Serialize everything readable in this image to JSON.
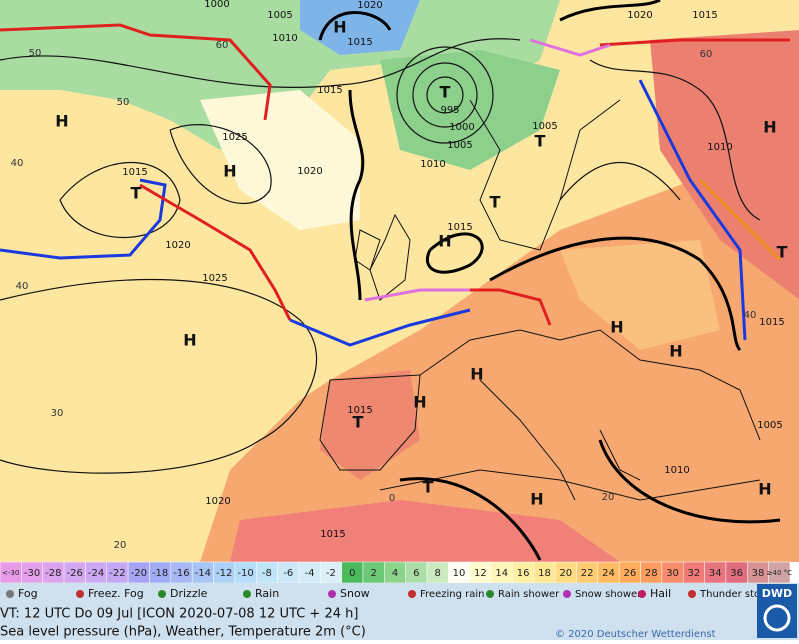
{
  "map": {
    "pressure_labels": [
      "1000",
      "1005",
      "1010",
      "1015",
      "1020",
      "1015",
      "1025",
      "1020",
      "1015",
      "1020",
      "1025",
      "995",
      "1000",
      "1005",
      "1010",
      "1015",
      "1020",
      "1015",
      "1005",
      "1010",
      "1015",
      "1015",
      "1020",
      "1015",
      "1010",
      "1005"
    ],
    "centers": [
      "H",
      "H",
      "T",
      "T",
      "T",
      "T",
      "H",
      "H",
      "H",
      "H",
      "T",
      "T",
      "H",
      "H",
      "H",
      "H",
      "H",
      "T",
      "H"
    ],
    "temperature_labels": [
      "50",
      "60",
      "50",
      "40",
      "40",
      "30",
      "20",
      "0",
      "40",
      "60",
      "20"
    ]
  },
  "scale": {
    "labels": [
      "<-30",
      -30,
      -28,
      -26,
      -24,
      -22,
      -20,
      -18,
      -16,
      -14,
      -12,
      -10,
      -8,
      -6,
      -4,
      -2,
      0,
      2,
      4,
      6,
      8,
      10,
      12,
      14,
      16,
      18,
      20,
      22,
      24,
      26,
      28,
      30,
      32,
      34,
      36,
      38,
      "≥40 °C"
    ],
    "colors": [
      "#e89ce8",
      "#e4a0ec",
      "#dca4ee",
      "#d4a8f0",
      "#cca8f2",
      "#c4a8f4",
      "#a8a4f4",
      "#a0acf4",
      "#a8b8f4",
      "#a8c4f4",
      "#acd0f6",
      "#b4dcf8",
      "#c0e4f8",
      "#cce8f8",
      "#d4ecf8",
      "#dcf0f8",
      "#4cba5c",
      "#6cc874",
      "#8cd48c",
      "#acdea8",
      "#cceac0",
      "#fffff4",
      "#fffcd0",
      "#fff6b8",
      "#fff0a4",
      "#ffe894",
      "#ffdc84",
      "#ffcc74",
      "#ffbc64",
      "#ffac5c",
      "#ff9c60",
      "#f88c6c",
      "#f07c78",
      "#e87480",
      "#e06c7c",
      "#d89494",
      "#d0a4a4"
    ]
  },
  "legend": [
    "Fog",
    "Freez. Fog",
    "Drizzle",
    "Rain",
    "Snow",
    "Freezing rain",
    "Rain shower",
    "Snow shower",
    "Hail",
    "Thunder storm"
  ],
  "footer": {
    "valid_time": "VT: 12 UTC Do  09 Jul [ICON 2020-07-08  12 UTC + 24 h]",
    "caption": "Sea level pressure (hPa), Weather, Temperature 2m (°C)",
    "copyright": "© 2020 Deutscher Wetterdienst",
    "logo": "DWD"
  }
}
